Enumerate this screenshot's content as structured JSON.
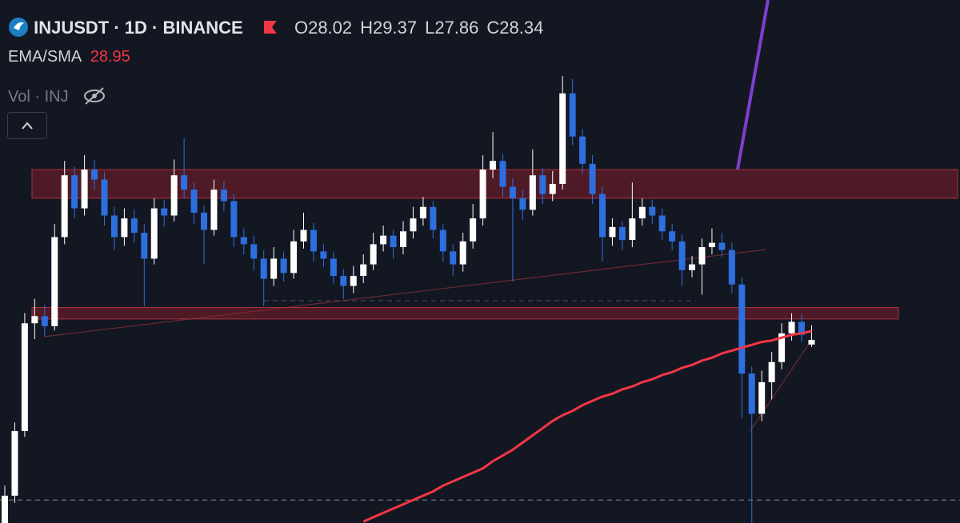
{
  "header": {
    "symbol": "INJUSDT · 1D · BINANCE",
    "ohlc_labels": [
      "O",
      "H",
      "L",
      "C"
    ],
    "volume_label": "Vol · INJ"
  },
  "chart_data": {
    "type": "candlestick",
    "ylim": [
      15.6,
      52.0
    ],
    "up_color": "#ffffff",
    "down_color": "#2e6fe0",
    "candles": [
      [
        15.5,
        18.2,
        15.0,
        17.5
      ],
      [
        17.5,
        22.6,
        17.0,
        22
      ],
      [
        22,
        30.2,
        21.6,
        29.5
      ],
      [
        29.5,
        31.2,
        28.4,
        30
      ],
      [
        30,
        30.8,
        28.6,
        29.3
      ],
      [
        29.3,
        36.4,
        29,
        35.5
      ],
      [
        35.5,
        40.8,
        35,
        39.8
      ],
      [
        39.8,
        40.4,
        36.8,
        37.5
      ],
      [
        37.5,
        41.2,
        37,
        40.2
      ],
      [
        40.2,
        40.9,
        38.8,
        39.5
      ],
      [
        39.5,
        40,
        36.3,
        37
      ],
      [
        37,
        37.6,
        34.6,
        35.5
      ],
      [
        35.5,
        37.5,
        34.9,
        36.8
      ],
      [
        36.8,
        37.4,
        35.1,
        35.8
      ],
      [
        35.8,
        36.4,
        30.7,
        34
      ],
      [
        34,
        38.2,
        33.6,
        37.5
      ],
      [
        37.5,
        38.1,
        36.2,
        37
      ],
      [
        37,
        40.9,
        36.6,
        39.8
      ],
      [
        39.8,
        42.4,
        38.2,
        38.8
      ],
      [
        38.8,
        39.3,
        36.4,
        37.2
      ],
      [
        37.2,
        37.7,
        33.6,
        36
      ],
      [
        36,
        39.5,
        35.6,
        38.8
      ],
      [
        38.8,
        39.4,
        37.3,
        38
      ],
      [
        38,
        38.5,
        34.8,
        35.5
      ],
      [
        35.5,
        36.1,
        34.3,
        35
      ],
      [
        35,
        35.6,
        33.2,
        34
      ],
      [
        34,
        34.6,
        30.7,
        32.6
      ],
      [
        32.6,
        34.8,
        32.1,
        34
      ],
      [
        34,
        34.5,
        32.4,
        33
      ],
      [
        33,
        36,
        32.6,
        35.2
      ],
      [
        35.2,
        37.2,
        34.7,
        36
      ],
      [
        36,
        36.5,
        33.8,
        34.5
      ],
      [
        34.5,
        35,
        33.4,
        34
      ],
      [
        34,
        34.5,
        32.2,
        32.8
      ],
      [
        32.8,
        33.3,
        31.2,
        32.1
      ],
      [
        32.1,
        33.5,
        31.6,
        32.8
      ],
      [
        32.8,
        34.3,
        32.3,
        33.6
      ],
      [
        33.6,
        35.8,
        33.2,
        35
      ],
      [
        35,
        36.3,
        34.5,
        35.6
      ],
      [
        35.6,
        36,
        34,
        34.8
      ],
      [
        34.8,
        36.6,
        34.3,
        35.9
      ],
      [
        35.9,
        37.6,
        35.4,
        36.8
      ],
      [
        36.8,
        38.3,
        36.3,
        37.6
      ],
      [
        37.6,
        38,
        35.4,
        36
      ],
      [
        36,
        36.4,
        33.8,
        34.5
      ],
      [
        34.5,
        35,
        32.8,
        33.6
      ],
      [
        33.6,
        35.8,
        33.1,
        35.2
      ],
      [
        35.2,
        37.8,
        34.7,
        36.8
      ],
      [
        36.8,
        41.2,
        36.3,
        40.2
      ],
      [
        40.2,
        42.8,
        39.6,
        40.8
      ],
      [
        40.8,
        41.3,
        38.3,
        39
      ],
      [
        39,
        39.6,
        32.4,
        38.2
      ],
      [
        38.2,
        38.8,
        36.7,
        37.4
      ],
      [
        37.4,
        41.6,
        37,
        39.8
      ],
      [
        39.8,
        40.3,
        37.8,
        38.5
      ],
      [
        38.5,
        40.1,
        38,
        39.2
      ],
      [
        39.2,
        46.7,
        38.8,
        45.5
      ],
      [
        45.5,
        46.5,
        41.9,
        42.5
      ],
      [
        42.5,
        43,
        39.9,
        40.6
      ],
      [
        40.6,
        41.2,
        37.8,
        38.5
      ],
      [
        38.5,
        39,
        33.8,
        35.5
      ],
      [
        35.5,
        36.8,
        34.9,
        36.2
      ],
      [
        36.2,
        36.6,
        34.6,
        35.3
      ],
      [
        35.3,
        39.3,
        34.8,
        36.8
      ],
      [
        36.8,
        38.2,
        36.3,
        37.6
      ],
      [
        37.6,
        38.1,
        36.4,
        37
      ],
      [
        37,
        37.5,
        35.3,
        35.9
      ],
      [
        35.9,
        36.4,
        34.6,
        35.2
      ],
      [
        35.2,
        35.7,
        32.1,
        33.2
      ],
      [
        33.2,
        34.2,
        32.7,
        33.6
      ],
      [
        33.6,
        35.4,
        31.5,
        34.8
      ],
      [
        34.8,
        36.1,
        34.3,
        35.1
      ],
      [
        35.1,
        35.8,
        34.1,
        34.6
      ],
      [
        34.6,
        35.1,
        31.6,
        32.2
      ],
      [
        32.2,
        32.7,
        22.9,
        26
      ],
      [
        26,
        26.5,
        15.6,
        23.2
      ],
      [
        23.2,
        26.2,
        22.7,
        25.4
      ],
      [
        25.4,
        27.5,
        24.2,
        26.8
      ],
      [
        26.8,
        29.5,
        26.3,
        28.8
      ],
      [
        28.8,
        30.2,
        28.3,
        29.6
      ],
      [
        29.6,
        30.1,
        28.2,
        28.7
      ],
      [
        28.02,
        29.37,
        27.86,
        28.34
      ]
    ],
    "series": [
      {
        "name": "EMA/SMA",
        "color": "#f23645",
        "values": [
          null,
          null,
          null,
          null,
          null,
          null,
          null,
          null,
          null,
          null,
          null,
          null,
          null,
          null,
          null,
          null,
          null,
          null,
          null,
          null,
          null,
          null,
          null,
          null,
          null,
          null,
          null,
          null,
          null,
          null,
          null,
          null,
          null,
          null,
          null,
          null,
          15.7,
          16.0,
          16.3,
          16.6,
          16.9,
          17.2,
          17.5,
          17.8,
          18.2,
          18.5,
          18.8,
          19.1,
          19.4,
          19.9,
          20.3,
          20.7,
          21.2,
          21.7,
          22.2,
          22.7,
          23.1,
          23.4,
          23.8,
          24.1,
          24.4,
          24.6,
          24.9,
          25.1,
          25.4,
          25.6,
          25.9,
          26.1,
          26.4,
          26.6,
          26.9,
          27.1,
          27.4,
          27.6,
          27.8,
          28.0,
          28.2,
          28.3,
          28.5,
          28.7,
          28.8,
          28.95
        ]
      }
    ],
    "zones": [
      [
        38.2,
        40.2
      ],
      [
        29.8,
        30.6
      ]
    ],
    "price_line": 17.2
  }
}
